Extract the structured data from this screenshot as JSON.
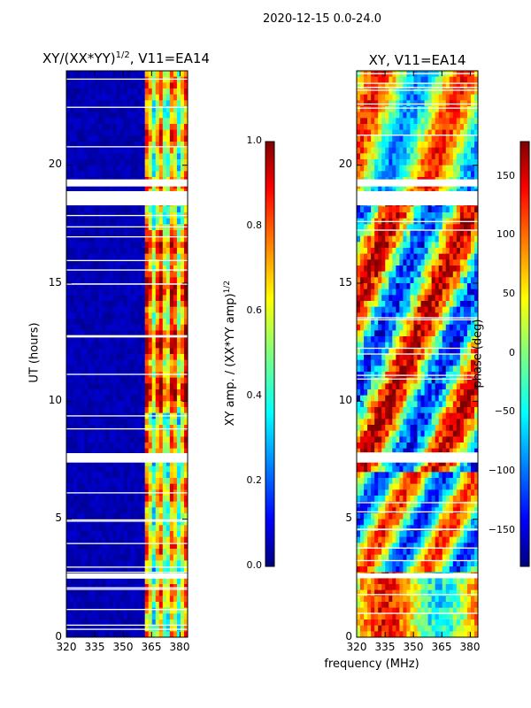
{
  "suptitle": "2020-12-15 0.0-24.0",
  "colors": {
    "jet_low": "#00007f",
    "jet_mid": "#7fff7f",
    "jet_high": "#7f0000"
  },
  "chart_data": [
    {
      "type": "heatmap",
      "title_base": "XY/(XX*YY)",
      "title_exp": "1/2",
      "title_suffix": ", V11=EA14",
      "xlabel": "",
      "ylabel": "UT (hours)",
      "xlim": [
        320,
        384
      ],
      "ylim": [
        0,
        24
      ],
      "x_ticks": [
        "320",
        "335",
        "350",
        "365",
        "380"
      ],
      "y_ticks": [
        "0",
        "5",
        "10",
        "15",
        "20"
      ],
      "colorbar": {
        "label_base": "XY amp. / (XX*YY amp)",
        "label_exp": "1/2",
        "range": [
          0.0,
          1.0
        ],
        "ticks": [
          "0.0",
          "0.2",
          "0.4",
          "0.6",
          "0.8",
          "1.0"
        ]
      },
      "gaps_hours": [
        [
          18.3,
          18.9
        ],
        [
          19.1,
          19.4
        ],
        [
          7.4,
          7.8
        ],
        [
          12.7,
          12.8
        ],
        [
          2.5,
          2.7
        ]
      ]
    },
    {
      "type": "heatmap",
      "title": "XY, V11=EA14",
      "xlabel": "frequency (MHz)",
      "xlim": [
        320,
        384
      ],
      "ylim": [
        0,
        24
      ],
      "x_ticks": [
        "320",
        "335",
        "350",
        "365",
        "380"
      ],
      "y_ticks": [
        "0",
        "5",
        "10",
        "15",
        "20"
      ],
      "colorbar": {
        "label": "phase (deg)",
        "range": [
          -180,
          180
        ],
        "ticks": [
          "−150",
          "−100",
          "−50",
          "0",
          "50",
          "100",
          "150"
        ]
      },
      "gaps_hours": [
        [
          18.3,
          18.9
        ],
        [
          19.1,
          19.4
        ],
        [
          7.4,
          7.8
        ],
        [
          2.5,
          2.7
        ]
      ]
    }
  ]
}
